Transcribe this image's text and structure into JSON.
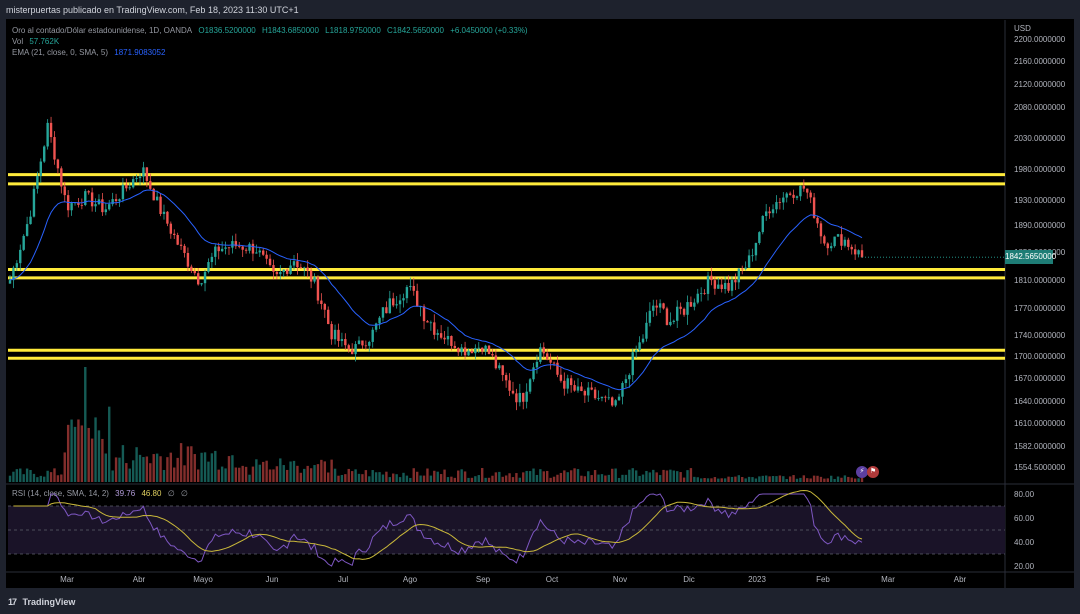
{
  "header": {
    "published_by": "misterpuertas publicado en TradingView.com, Feb 18, 2023 11:30 UTC+1"
  },
  "legend": {
    "symbol": "Oro al contado/Dólar estadounidense, 1D, OANDA",
    "open": "O1836.5200000",
    "high": "H1843.6850000",
    "low": "L1818.9750000",
    "close": "C1842.5650000",
    "change": "+6.0450000 (+0.33%)",
    "volume_label": "Vol",
    "volume_value": "57.762K",
    "ema_label": "EMA (21, close, 0, SMA, 5)",
    "ema_value": "1871.9083052",
    "rsi_label": "RSI (14, close, SMA, 14, 2)",
    "rsi_value": "39.76",
    "rsi_ma_value": "46.80",
    "rsi_extra1": "∅",
    "rsi_extra2": "∅"
  },
  "price_axis": {
    "unit": "USD",
    "current_price": "1842.5650000",
    "ticks": [
      "2200.0000000",
      "2160.0000000",
      "2120.0000000",
      "2080.0000000",
      "2030.0000000",
      "1980.0000000",
      "1930.0000000",
      "1890.0000000",
      "1850.0000000",
      "1810.0000000",
      "1770.0000000",
      "1740.0000000",
      "1700.0000000",
      "1670.0000000",
      "1640.0000000",
      "1610.0000000",
      "1582.0000000",
      "1554.5000000"
    ]
  },
  "rsi_axis": {
    "ticks": [
      "80.00",
      "60.00",
      "40.00",
      "20.00"
    ]
  },
  "time_axis": {
    "labels": [
      "Mar",
      "Abr",
      "Mayo",
      "Jun",
      "Jul",
      "Ago",
      "Sep",
      "Oct",
      "Nov",
      "Dic",
      "2023",
      "Feb",
      "Mar",
      "Abr"
    ]
  },
  "footer": {
    "brand": "TradingView",
    "logo": "17"
  },
  "colors": {
    "background": "#000000",
    "up": "#26a69a",
    "down": "#ef5350",
    "ema": "#2962ff",
    "level_line": "#ffeb3b",
    "rsi": "#7e57c2",
    "rsi_ma": "#c9b83a",
    "price_tag": "#1e7d76"
  },
  "chart_data": {
    "type": "candlestick",
    "title": "Oro al contado/Dólar estadounidense, 1D, OANDA",
    "ylabel": "USD",
    "ylim": [
      1540,
      2210
    ],
    "horizontal_levels": [
      1971,
      1956,
      1825,
      1813,
      1711,
      1697
    ],
    "price_path": [
      [
        "Feb 25",
        1810
      ],
      [
        "Mar 1",
        1900
      ],
      [
        "Mar 8",
        2050
      ],
      [
        "Mar 15",
        1920
      ],
      [
        "Mar 22",
        1935
      ],
      [
        "Mar 29",
        1915
      ],
      [
        "Abr 8",
        1945
      ],
      [
        "Abr 18",
        1980
      ],
      [
        "Abr 29",
        1910
      ],
      [
        "May 10",
        1855
      ],
      [
        "May 16",
        1810
      ],
      [
        "May 25",
        1855
      ],
      [
        "Jun 1",
        1860
      ],
      [
        "Jun 10",
        1855
      ],
      [
        "Jun 14",
        1810
      ],
      [
        "Jun 22",
        1840
      ],
      [
        "Jul 1",
        1810
      ],
      [
        "Jul 8",
        1740
      ],
      [
        "Jul 21",
        1710
      ],
      [
        "Jul 27",
        1735
      ],
      [
        "Ago 4",
        1775
      ],
      [
        "Ago 12",
        1800
      ],
      [
        "Ago 19",
        1760
      ],
      [
        "Ago 26",
        1735
      ],
      [
        "Sep 2",
        1710
      ],
      [
        "Sep 12",
        1720
      ],
      [
        "Sep 21",
        1670
      ],
      [
        "Sep 28",
        1640
      ],
      [
        "Oct 4",
        1715
      ],
      [
        "Oct 12",
        1670
      ],
      [
        "Oct 21",
        1650
      ],
      [
        "Oct 28",
        1645
      ],
      [
        "Nov 3",
        1630
      ],
      [
        "Nov 10",
        1705
      ],
      [
        "Nov 15",
        1775
      ],
      [
        "Nov 25",
        1755
      ],
      [
        "Dic 5",
        1780
      ],
      [
        "Dic 13",
        1810
      ],
      [
        "Dic 23",
        1800
      ],
      [
        "Ene 3",
        1835
      ],
      [
        "Ene 13",
        1915
      ],
      [
        "Ene 26",
        1940
      ],
      [
        "Feb 1",
        1950
      ],
      [
        "Feb 3",
        1865
      ],
      [
        "Feb 10",
        1870
      ],
      [
        "Feb 17",
        1842.565
      ]
    ],
    "ema_21_last": 1871.9083052,
    "rsi": {
      "period": 14,
      "last": 39.76,
      "ma_last": 46.8,
      "ylim": [
        20,
        80
      ],
      "bands": [
        70,
        30
      ]
    },
    "volume_last": "57.762K"
  }
}
